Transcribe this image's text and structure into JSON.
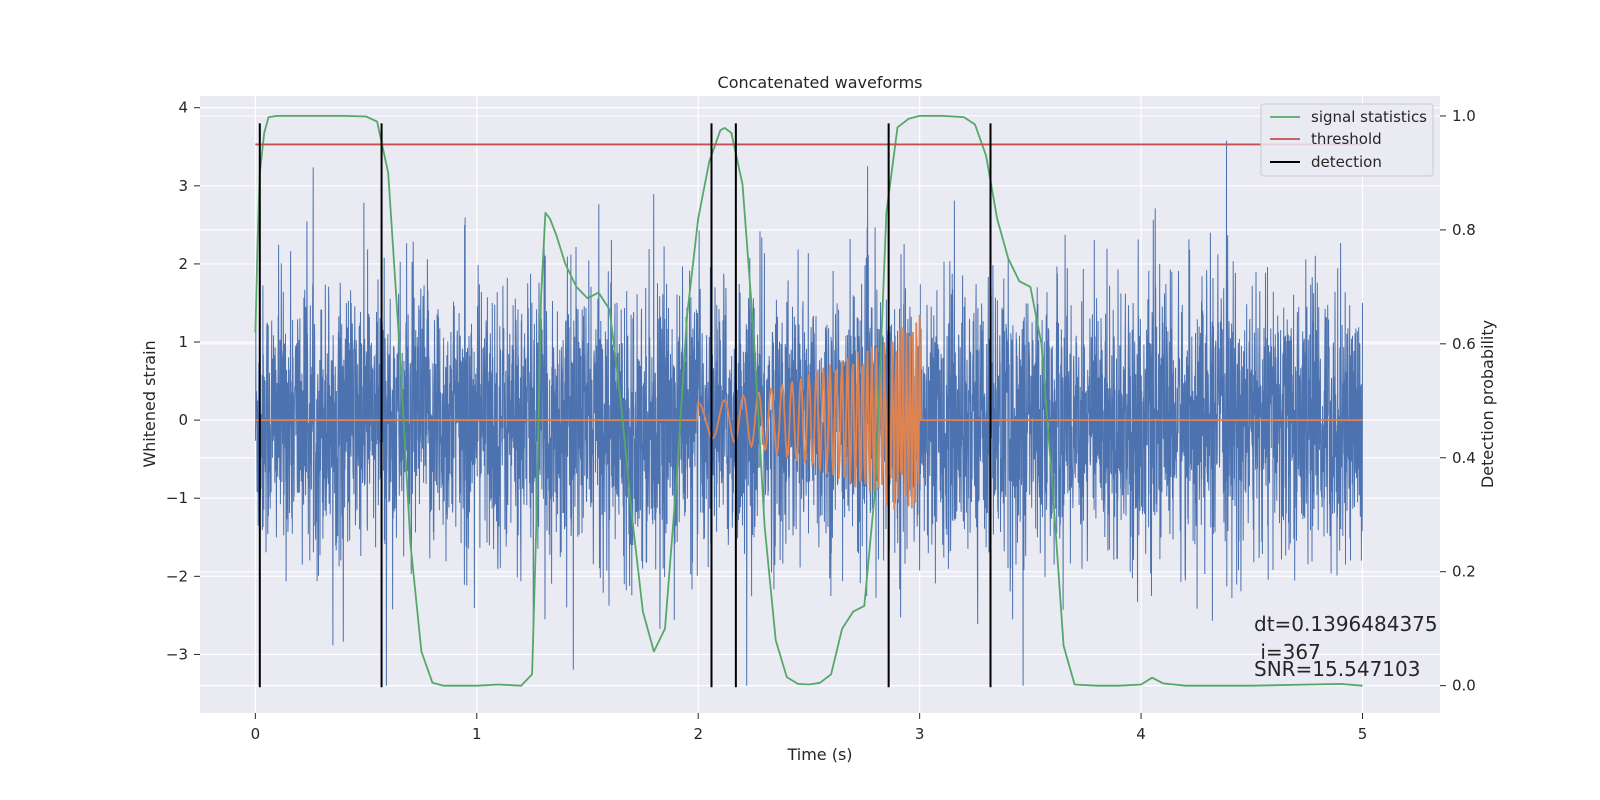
{
  "chart_data": {
    "type": "line",
    "title": "Concatenated waveforms",
    "xlabel": "Time (s)",
    "ylabel": "Whitened strain",
    "y2label": "Detection probability",
    "xlim": [
      -0.25,
      5.35
    ],
    "ylim": [
      -3.75,
      4.15
    ],
    "y2lim": [
      -0.048,
      1.035
    ],
    "xticks": [
      0,
      1,
      2,
      3,
      4,
      5
    ],
    "yticks": [
      -3,
      -2,
      -1,
      0,
      1,
      2,
      3,
      4
    ],
    "y2ticks": [
      0.0,
      0.2,
      0.4,
      0.6,
      0.8,
      1.0
    ],
    "y2tick_labels": [
      "0.0",
      "0.2",
      "0.4",
      "0.6",
      "0.8",
      "1.0"
    ],
    "grid": true,
    "legend_position": "top-right",
    "series": [
      {
        "key": "strain",
        "type": "noise",
        "color": "#4c72b0",
        "x_range": [
          0,
          5
        ],
        "amplitude_range": [
          -3.4,
          3.8
        ],
        "axis": "left"
      },
      {
        "key": "injected",
        "type": "chirp",
        "color": "#dd8452",
        "x_range": [
          2.0,
          3.0
        ],
        "amplitude_range": [
          -1.35,
          1.4
        ],
        "axis": "left"
      },
      {
        "name": "signal statistics",
        "color": "#55a868",
        "axis": "right",
        "x": [
          0,
          0.01,
          0.02,
          0.04,
          0.06,
          0.1,
          0.2,
          0.3,
          0.4,
          0.5,
          0.55,
          0.6,
          0.65,
          0.7,
          0.75,
          0.8,
          0.85,
          0.9,
          1.0,
          1.1,
          1.2,
          1.25,
          1.27,
          1.29,
          1.31,
          1.33,
          1.36,
          1.4,
          1.45,
          1.5,
          1.55,
          1.6,
          1.65,
          1.7,
          1.75,
          1.8,
          1.85,
          1.9,
          1.95,
          2.0,
          2.05,
          2.1,
          2.12,
          2.15,
          2.2,
          2.25,
          2.3,
          2.35,
          2.4,
          2.45,
          2.5,
          2.55,
          2.6,
          2.65,
          2.7,
          2.75,
          2.8,
          2.85,
          2.9,
          2.95,
          3.0,
          3.1,
          3.2,
          3.25,
          3.3,
          3.35,
          3.4,
          3.45,
          3.5,
          3.55,
          3.6,
          3.65,
          3.7,
          3.8,
          3.9,
          4.0,
          4.05,
          4.1,
          4.2,
          4.5,
          4.9,
          5.0
        ],
        "values": [
          0.62,
          0.78,
          0.9,
          0.97,
          0.998,
          1.0,
          1.0,
          1.0,
          1.0,
          0.999,
          0.99,
          0.9,
          0.6,
          0.25,
          0.06,
          0.005,
          0.0,
          0.0,
          0.0,
          0.002,
          0.0,
          0.02,
          0.3,
          0.68,
          0.83,
          0.82,
          0.79,
          0.74,
          0.7,
          0.68,
          0.69,
          0.66,
          0.5,
          0.3,
          0.13,
          0.06,
          0.1,
          0.35,
          0.65,
          0.82,
          0.92,
          0.975,
          0.979,
          0.97,
          0.88,
          0.62,
          0.28,
          0.08,
          0.015,
          0.003,
          0.002,
          0.005,
          0.02,
          0.1,
          0.13,
          0.14,
          0.35,
          0.83,
          0.98,
          0.995,
          1.0,
          1.0,
          0.998,
          0.985,
          0.93,
          0.82,
          0.75,
          0.71,
          0.7,
          0.6,
          0.35,
          0.07,
          0.002,
          0.0,
          0.0,
          0.002,
          0.014,
          0.004,
          0.0,
          0.0,
          0.003,
          0.0
        ]
      },
      {
        "name": "threshold",
        "color": "#c44e52",
        "axis": "right",
        "x": [
          0,
          5
        ],
        "values": [
          0.95,
          0.95
        ]
      },
      {
        "name": "detection",
        "color": "#000000",
        "axis": "left",
        "type": "vlines",
        "x": [
          0.02,
          0.57,
          2.06,
          2.17,
          2.86,
          3.32
        ],
        "y_range": [
          -3.42,
          3.8
        ]
      }
    ],
    "annotations": [
      "dt=0.1396484375",
      " i=367",
      "SNR=15.547103"
    ]
  }
}
